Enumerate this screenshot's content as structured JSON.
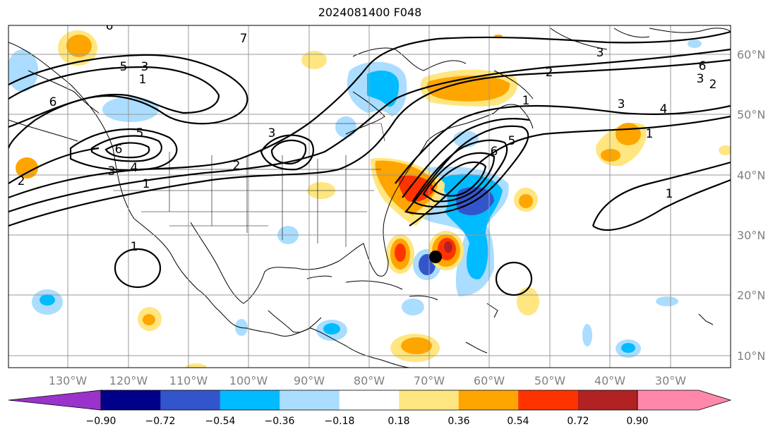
{
  "title": "2024081400 F048",
  "lon_labels": [
    "130°W",
    "120°W",
    "110°W",
    "100°W",
    "90°W",
    "80°W",
    "70°W",
    "60°W",
    "50°W",
    "40°W",
    "30°W"
  ],
  "lat_labels": [
    "60°N",
    "50°N",
    "40°N",
    "30°N",
    "20°N",
    "10°N"
  ],
  "contour_labels": [
    "5",
    "1",
    "3",
    "6",
    "2",
    "4",
    "7"
  ],
  "colorbar": {
    "ticks": [
      "−0.90",
      "−0.72",
      "−0.54",
      "−0.36",
      "−0.18",
      "0.18",
      "0.36",
      "0.54",
      "0.72",
      "0.90"
    ],
    "colors": [
      "#9933cc",
      "#000088",
      "#3355cc",
      "#00bbff",
      "#aaddff",
      "#ffffff",
      "#ffe680",
      "#ffa500",
      "#ff3300",
      "#b22222",
      "#ff88aa"
    ]
  },
  "colors": {
    "grid": "#999999",
    "axis_text": "#808080",
    "contour": "#000000",
    "coast": "#000000"
  }
}
